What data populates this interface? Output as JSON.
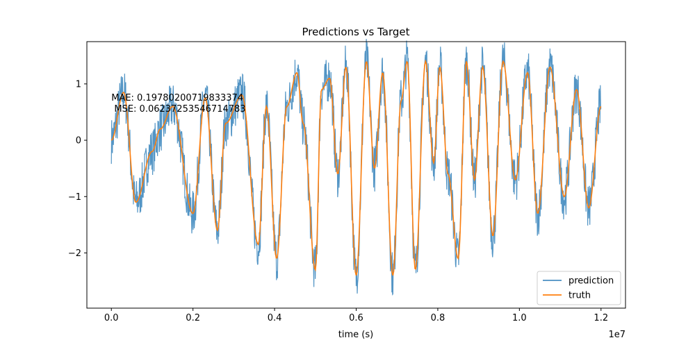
{
  "chart_data": {
    "type": "line",
    "title": "Predictions vs Target",
    "xlabel": "time (s)",
    "ylabel": "",
    "x_offset_label": "1e7",
    "xlim": [
      -0.06,
      1.26
    ],
    "ylim": [
      -2.98,
      1.75
    ],
    "x_ticks": [
      0.0,
      0.2,
      0.4,
      0.6,
      0.8,
      1.0,
      1.2
    ],
    "x_tick_labels": [
      "0.0",
      "0.2",
      "0.4",
      "0.6",
      "0.8",
      "1.0",
      "1.2"
    ],
    "y_ticks": [
      1,
      0,
      -1,
      -2
    ],
    "y_tick_labels": [
      "1",
      "0",
      "−1",
      "−2"
    ],
    "grid": false,
    "legend_position": "lower-right",
    "annotation_lines": [
      "MAE: 0.19780200719833374",
      " MSE: 0.06237253546714783"
    ],
    "series": [
      {
        "name": "prediction",
        "color": "#4a8fc2",
        "style": "noisy band around truth",
        "noise_amplitude": 0.42,
        "x": [
          0.0,
          0.03,
          0.06,
          0.1,
          0.12,
          0.15,
          0.2,
          0.23,
          0.26,
          0.28,
          0.32,
          0.36,
          0.38,
          0.405,
          0.43,
          0.455,
          0.47,
          0.5,
          0.515,
          0.535,
          0.555,
          0.575,
          0.6,
          0.625,
          0.645,
          0.665,
          0.69,
          0.71,
          0.725,
          0.745,
          0.77,
          0.79,
          0.805,
          0.825,
          0.85,
          0.87,
          0.89,
          0.91,
          0.935,
          0.96,
          0.99,
          1.02,
          1.045,
          1.075,
          1.11,
          1.14,
          1.17,
          1.2
        ],
        "values": [
          0.0,
          0.85,
          -1.1,
          -0.2,
          0.2,
          0.6,
          -1.3,
          0.75,
          -1.6,
          0.3,
          0.8,
          -1.85,
          0.6,
          -2.1,
          0.6,
          1.2,
          0.3,
          -2.3,
          0.9,
          1.1,
          -0.6,
          1.3,
          -2.4,
          1.4,
          -0.5,
          1.2,
          -2.4,
          0.7,
          1.4,
          -2.3,
          1.4,
          -0.4,
          1.3,
          -0.6,
          -2.1,
          1.4,
          -0.7,
          1.3,
          -1.7,
          1.4,
          -0.7,
          1.2,
          -1.3,
          1.3,
          -1.0,
          0.9,
          -1.2,
          0.6
        ]
      },
      {
        "name": "truth",
        "color": "#ff7f0e",
        "x": [
          0.0,
          0.03,
          0.06,
          0.1,
          0.12,
          0.15,
          0.2,
          0.23,
          0.26,
          0.28,
          0.32,
          0.36,
          0.38,
          0.405,
          0.43,
          0.455,
          0.47,
          0.5,
          0.515,
          0.535,
          0.555,
          0.575,
          0.6,
          0.625,
          0.645,
          0.665,
          0.69,
          0.71,
          0.725,
          0.745,
          0.77,
          0.79,
          0.805,
          0.825,
          0.85,
          0.87,
          0.89,
          0.91,
          0.935,
          0.96,
          0.99,
          1.02,
          1.045,
          1.075,
          1.11,
          1.14,
          1.17,
          1.2
        ],
        "values": [
          0.0,
          0.85,
          -1.1,
          -0.2,
          0.2,
          0.6,
          -1.3,
          0.75,
          -1.6,
          0.3,
          0.8,
          -1.85,
          0.6,
          -2.1,
          0.6,
          1.2,
          0.3,
          -2.3,
          0.9,
          1.1,
          -0.6,
          1.3,
          -2.4,
          1.4,
          -0.5,
          1.2,
          -2.4,
          0.7,
          1.4,
          -2.3,
          1.4,
          -0.4,
          1.3,
          -0.6,
          -2.1,
          1.4,
          -0.7,
          1.3,
          -1.7,
          1.4,
          -0.7,
          1.2,
          -1.3,
          1.3,
          -1.0,
          0.9,
          -1.2,
          0.6
        ]
      }
    ]
  }
}
